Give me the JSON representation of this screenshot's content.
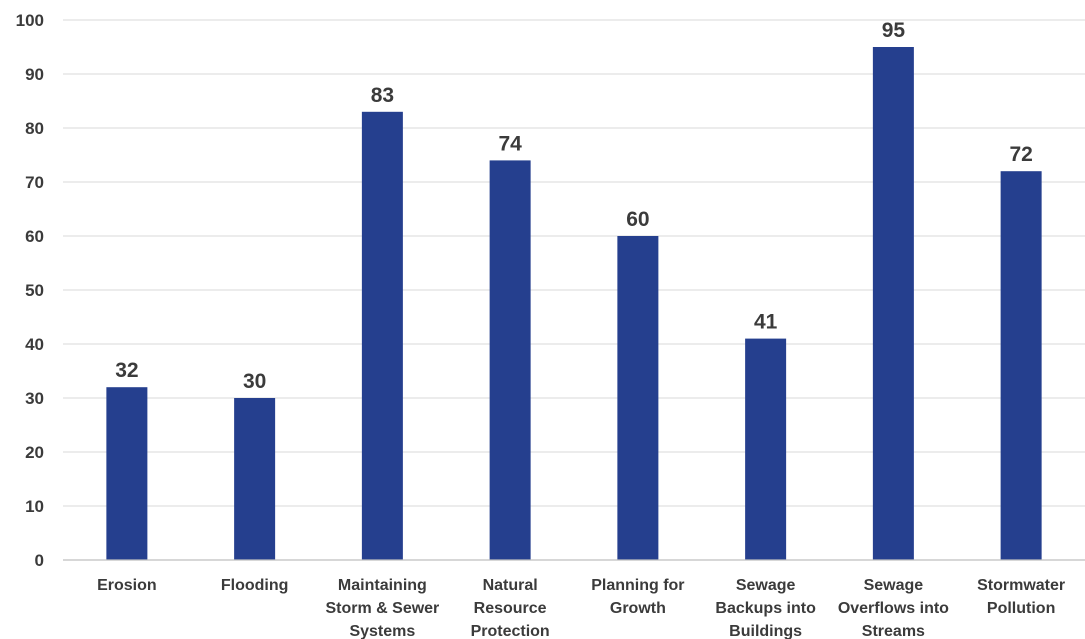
{
  "chart_data": {
    "type": "bar",
    "categories": [
      [
        "Erosion"
      ],
      [
        "Flooding"
      ],
      [
        "Maintaining",
        "Storm & Sewer",
        "Systems"
      ],
      [
        "Natural",
        "Resource",
        "Protection"
      ],
      [
        "Planning for",
        "Growth"
      ],
      [
        "Sewage",
        "Backups into",
        "Buildings"
      ],
      [
        "Sewage",
        "Overflows into",
        "Streams"
      ],
      [
        "Stormwater",
        "Pollution"
      ]
    ],
    "values": [
      32,
      30,
      83,
      74,
      60,
      41,
      95,
      72
    ],
    "ylim": [
      0,
      100
    ],
    "yticks": [
      "0",
      "10",
      "20",
      "30",
      "40",
      "50",
      "60",
      "70",
      "80",
      "90",
      "100"
    ],
    "grid": true,
    "legend": "none",
    "bar_color": "#253f8e",
    "title": "",
    "xlabel": "",
    "ylabel": ""
  }
}
